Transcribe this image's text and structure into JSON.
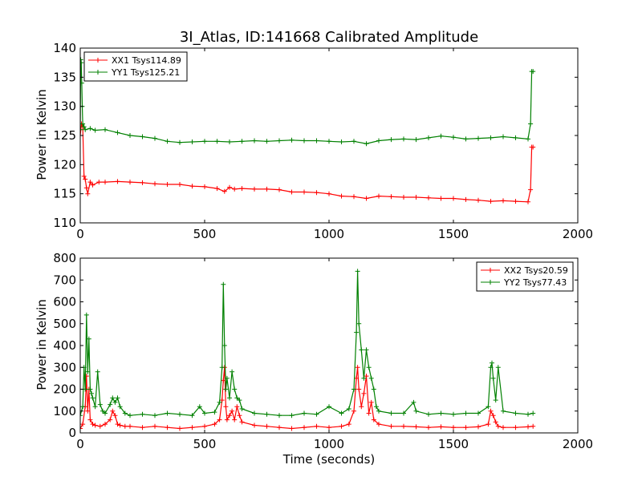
{
  "colors": {
    "xx": "#ff0000",
    "yy": "#008000",
    "axis": "#000000",
    "background": "#ffffff"
  },
  "chart_data": [
    {
      "type": "line",
      "title": "3I_Atlas, ID:141668 Calibrated Amplitude",
      "xlabel": "",
      "ylabel": "Power in Kelvin",
      "xlim": [
        0,
        2000
      ],
      "ylim": [
        110,
        140
      ],
      "xticks": [
        0,
        500,
        1000,
        1500,
        2000
      ],
      "yticks": [
        110,
        115,
        120,
        125,
        130,
        135,
        140
      ],
      "grid": false,
      "legend_position": "top-left",
      "series": [
        {
          "name": "XX1 Tsys114.89",
          "color": "#ff0000",
          "x": [
            0,
            5,
            10,
            15,
            20,
            25,
            30,
            40,
            50,
            75,
            100,
            150,
            200,
            250,
            300,
            350,
            400,
            450,
            500,
            550,
            580,
            600,
            620,
            650,
            700,
            750,
            800,
            850,
            900,
            950,
            1000,
            1050,
            1100,
            1150,
            1200,
            1250,
            1300,
            1350,
            1400,
            1450,
            1500,
            1550,
            1600,
            1650,
            1700,
            1750,
            1800,
            1810,
            1815,
            1820
          ],
          "y": [
            125,
            127,
            126.5,
            118,
            117.5,
            116,
            115,
            117,
            116.5,
            117,
            117,
            117.1,
            117,
            116.9,
            116.7,
            116.6,
            116.6,
            116.3,
            116.2,
            115.9,
            115.4,
            116.1,
            115.8,
            115.9,
            115.8,
            115.8,
            115.7,
            115.3,
            115.3,
            115.2,
            115.0,
            114.6,
            114.5,
            114.2,
            114.6,
            114.5,
            114.4,
            114.4,
            114.3,
            114.2,
            114.2,
            114.0,
            113.9,
            113.7,
            113.8,
            113.7,
            113.6,
            115.7,
            123,
            123
          ]
        },
        {
          "name": "YY1 Tsys125.21",
          "color": "#008000",
          "x": [
            0,
            2,
            4,
            6,
            8,
            10,
            15,
            20,
            40,
            60,
            100,
            150,
            200,
            250,
            300,
            350,
            400,
            450,
            500,
            550,
            600,
            650,
            700,
            750,
            800,
            850,
            900,
            950,
            1000,
            1050,
            1100,
            1150,
            1200,
            1250,
            1300,
            1350,
            1400,
            1450,
            1500,
            1550,
            1600,
            1650,
            1700,
            1750,
            1800,
            1810,
            1815,
            1820
          ],
          "y": [
            126,
            138,
            137.5,
            134,
            130,
            127,
            126.5,
            126,
            126.2,
            125.9,
            126,
            125.5,
            125,
            124.8,
            124.5,
            124,
            123.8,
            123.9,
            124.0,
            124.0,
            123.9,
            124.0,
            124.1,
            124.0,
            124.1,
            124.2,
            124.1,
            124.1,
            124.0,
            123.9,
            124.0,
            123.6,
            124.1,
            124.3,
            124.4,
            124.3,
            124.6,
            124.9,
            124.7,
            124.4,
            124.5,
            124.6,
            124.8,
            124.6,
            124.4,
            127,
            136,
            136
          ]
        }
      ]
    },
    {
      "type": "line",
      "title": "",
      "xlabel": "Time (seconds)",
      "ylabel": "Power in Kelvin",
      "xlim": [
        0,
        2000
      ],
      "ylim": [
        0,
        800
      ],
      "xticks": [
        0,
        500,
        1000,
        1500,
        2000
      ],
      "yticks": [
        0,
        100,
        200,
        300,
        400,
        500,
        600,
        700,
        800
      ],
      "grid": false,
      "legend_position": "top-right",
      "series": [
        {
          "name": "XX2 Tsys20.59",
          "color": "#ff0000",
          "x": [
            0,
            10,
            20,
            25,
            30,
            35,
            40,
            50,
            60,
            80,
            100,
            120,
            130,
            140,
            150,
            160,
            180,
            200,
            250,
            300,
            350,
            400,
            450,
            500,
            540,
            560,
            570,
            575,
            580,
            585,
            590,
            600,
            610,
            620,
            630,
            640,
            650,
            700,
            750,
            800,
            850,
            900,
            950,
            1000,
            1050,
            1080,
            1100,
            1110,
            1115,
            1120,
            1130,
            1140,
            1150,
            1160,
            1170,
            1180,
            1200,
            1250,
            1300,
            1350,
            1400,
            1450,
            1500,
            1550,
            1600,
            1640,
            1650,
            1660,
            1670,
            1680,
            1700,
            1750,
            1800,
            1820
          ],
          "y": [
            20,
            40,
            120,
            260,
            100,
            200,
            60,
            40,
            35,
            30,
            40,
            60,
            100,
            80,
            40,
            35,
            30,
            30,
            25,
            30,
            25,
            20,
            25,
            30,
            40,
            60,
            150,
            240,
            300,
            120,
            60,
            80,
            100,
            60,
            120,
            80,
            50,
            35,
            30,
            25,
            20,
            25,
            30,
            25,
            30,
            40,
            100,
            250,
            300,
            200,
            120,
            180,
            260,
            90,
            140,
            60,
            40,
            30,
            30,
            28,
            25,
            28,
            25,
            25,
            28,
            40,
            100,
            80,
            50,
            30,
            25,
            25,
            28,
            30
          ]
        },
        {
          "name": "YY2 Tsys77.43",
          "color": "#008000",
          "x": [
            0,
            10,
            15,
            20,
            25,
            30,
            35,
            40,
            45,
            50,
            60,
            70,
            80,
            90,
            100,
            120,
            130,
            140,
            150,
            160,
            180,
            200,
            250,
            300,
            350,
            400,
            450,
            480,
            500,
            540,
            560,
            570,
            575,
            580,
            585,
            590,
            600,
            610,
            620,
            630,
            640,
            650,
            700,
            750,
            800,
            850,
            900,
            950,
            1000,
            1050,
            1080,
            1100,
            1110,
            1115,
            1120,
            1130,
            1140,
            1150,
            1160,
            1170,
            1180,
            1190,
            1200,
            1250,
            1300,
            1340,
            1350,
            1400,
            1450,
            1500,
            1550,
            1600,
            1640,
            1650,
            1655,
            1660,
            1670,
            1680,
            1700,
            1750,
            1800,
            1820
          ],
          "y": [
            80,
            120,
            300,
            200,
            540,
            280,
            430,
            200,
            180,
            160,
            120,
            280,
            130,
            100,
            90,
            130,
            160,
            140,
            160,
            120,
            90,
            80,
            85,
            80,
            90,
            85,
            80,
            120,
            90,
            95,
            140,
            300,
            680,
            400,
            200,
            250,
            160,
            280,
            200,
            160,
            150,
            110,
            90,
            85,
            80,
            80,
            90,
            85,
            120,
            90,
            110,
            200,
            460,
            740,
            500,
            380,
            250,
            380,
            300,
            250,
            200,
            120,
            100,
            90,
            90,
            140,
            100,
            85,
            90,
            85,
            90,
            90,
            120,
            300,
            320,
            250,
            150,
            300,
            100,
            90,
            85,
            90
          ]
        }
      ]
    }
  ]
}
